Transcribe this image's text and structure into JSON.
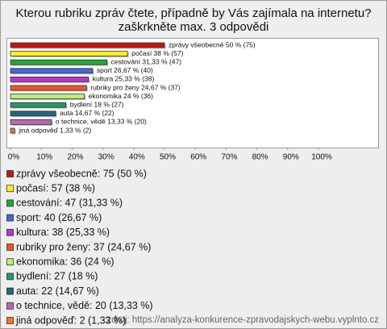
{
  "chart_data": {
    "type": "bar",
    "orientation": "horizontal",
    "title": "Kterou rubriku zpráv čtete, případně by Vás zajímala na internetu?",
    "subtitle": "zaškrkněte max. 3 odpovědi",
    "categories": [
      "zprávy všeobecně",
      "počasí",
      "cestování",
      "sport",
      "kultura",
      "rubriky pro ženy",
      "ekonomika",
      "bydlení",
      "auta",
      "o technice, vědě",
      "jiná odpověď"
    ],
    "values": [
      50,
      38,
      31.33,
      26.67,
      25.33,
      24.67,
      24,
      18,
      14.67,
      13.33,
      1.33
    ],
    "value_labels": [
      "zprávy všeobecně 50 % (75)",
      "počasí 38 % (57)",
      "cestování 31,33 % (47)",
      "sport 26,67 % (40)",
      "kultura 25,33 % (38)",
      "rubriky pro ženy 24,67 % (37)",
      "ekonomika 24 % (36)",
      "bydlení 18 % (27)",
      "auta 14,67 % (22)",
      "o technice, vědě 13,33 % (20)",
      "jiná odpověď 1,33 % (2)"
    ],
    "legend": [
      "zprávy všeobecně: 75 (50 %)",
      "počasí: 57 (38 %)",
      "cestování: 47 (31,33 %)",
      "sport: 40 (26,67 %)",
      "kultura: 38 (25,33 %)",
      "rubriky pro ženy: 37 (24,67 %)",
      "ekonomika: 36 (24 %)",
      "bydlení: 27 (18 %)",
      "auta: 22 (14,67 %)",
      "o technice, vědě: 20 (13,33 %)",
      "jiná odpověď: 2 (1,33 %)"
    ],
    "colors": [
      "#cc1111",
      "#ffee22",
      "#22aa33",
      "#4466dd",
      "#bb33cc",
      "#ee5522",
      "#bbee77",
      "#229966",
      "#226677",
      "#bb66bb",
      "#ee7722"
    ],
    "xlim": [
      0,
      100
    ],
    "xticks": [
      {
        "value": 0,
        "label": "0%"
      },
      {
        "value": 10,
        "label": "10%"
      },
      {
        "value": 20,
        "label": "20%"
      },
      {
        "value": 30,
        "label": "30%"
      },
      {
        "value": 40,
        "label": "40%"
      },
      {
        "value": 50,
        "label": "50%"
      },
      {
        "value": 60,
        "label": "60%"
      },
      {
        "value": 70,
        "label": "70%"
      },
      {
        "value": 80,
        "label": "80%"
      },
      {
        "value": 90,
        "label": "90%"
      },
      {
        "value": 100,
        "label": "100%"
      }
    ],
    "source": "zdroj: https://analyza-konkurence-zpravodajskych-webu.vyplnto.cz"
  }
}
